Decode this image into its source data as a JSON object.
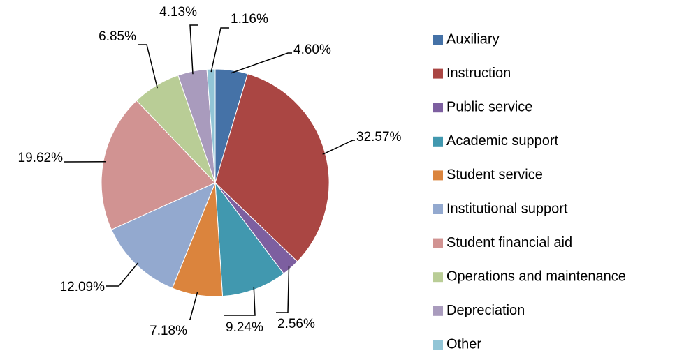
{
  "chart_data": {
    "type": "pie",
    "categories": [
      "Auxiliary",
      "Instruction",
      "Public service",
      "Academic support",
      "Student service",
      "Institutional support",
      "Student financial aid",
      "Operations and maintenance",
      "Depreciation",
      "Other"
    ],
    "values": [
      4.6,
      32.57,
      2.56,
      9.24,
      7.18,
      12.09,
      19.62,
      6.85,
      4.13,
      1.16
    ],
    "value_labels": [
      "4.60%",
      "32.57%",
      "2.56%",
      "9.24%",
      "7.18%",
      "12.09%",
      "19.62%",
      "6.85%",
      "4.13%",
      "1.16%"
    ],
    "colors": [
      "#4572a7",
      "#aa4643",
      "#7d5fa0",
      "#4198af",
      "#db843d",
      "#93a9cf",
      "#d19392",
      "#b9cd96",
      "#a99bbd",
      "#92c5d6"
    ],
    "legend": "right"
  }
}
